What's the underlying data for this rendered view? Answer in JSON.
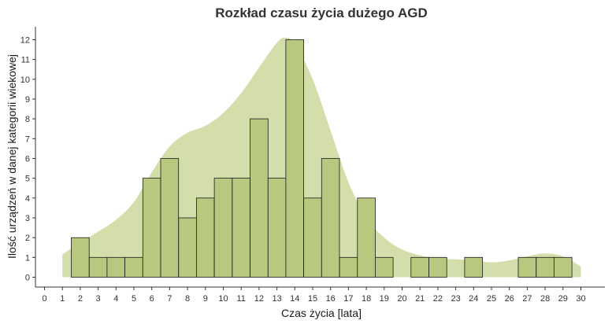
{
  "chart_data": {
    "type": "histogram",
    "title": "Rozkład czasu życia dużego AGD",
    "xlabel": "Czas życia [lata]",
    "ylabel": "Ilość urządzeń w danej kategorii wiekowej",
    "xlim": [
      0,
      30
    ],
    "ylim": [
      0,
      12
    ],
    "x_ticks": [
      0,
      1,
      2,
      3,
      4,
      5,
      6,
      7,
      8,
      9,
      10,
      11,
      12,
      13,
      14,
      15,
      16,
      17,
      18,
      19,
      20,
      21,
      22,
      23,
      24,
      25,
      26,
      27,
      28,
      29,
      30
    ],
    "y_ticks": [
      0,
      1,
      2,
      3,
      4,
      5,
      6,
      7,
      8,
      9,
      10,
      11,
      12
    ],
    "bin_width": 1,
    "bins_x": [
      2,
      3,
      4,
      5,
      6,
      7,
      8,
      9,
      10,
      11,
      12,
      13,
      14,
      15,
      16,
      17,
      18,
      19,
      20,
      21,
      22,
      23,
      24,
      25,
      26,
      27,
      28,
      29
    ],
    "counts": [
      2,
      1,
      1,
      1,
      5,
      6,
      3,
      4,
      5,
      5,
      8,
      5,
      12,
      4,
      6,
      1,
      4,
      1,
      0,
      1,
      1,
      0,
      1,
      0,
      0,
      1,
      1,
      1
    ],
    "density_curve": {
      "x": [
        1,
        2,
        3,
        4,
        5,
        6,
        7,
        8,
        9,
        10,
        11,
        12,
        13,
        13.5,
        14,
        15,
        16,
        17,
        18,
        19,
        20,
        21,
        22,
        23,
        24,
        25,
        26,
        27,
        28,
        29,
        30
      ],
      "y": [
        1.15,
        1.75,
        2.3,
        2.9,
        3.8,
        5.3,
        6.6,
        7.3,
        7.65,
        8.3,
        9.3,
        10.6,
        11.85,
        12.1,
        11.8,
        10.0,
        7.4,
        4.8,
        3.0,
        2.0,
        1.4,
        1.1,
        0.95,
        0.9,
        0.85,
        0.75,
        0.85,
        1.05,
        1.2,
        1.05,
        0.55
      ]
    },
    "bar_fill": "#b8c87e",
    "bar_stroke": "#1a1a1a",
    "density_fill": "#d4deaa",
    "grid": false
  }
}
